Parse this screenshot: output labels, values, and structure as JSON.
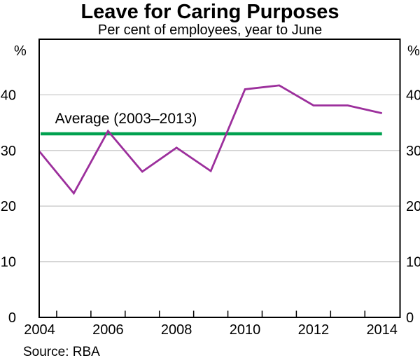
{
  "chart_data": {
    "type": "line",
    "title": "Leave for Caring Purposes",
    "subtitle": "Per cent of employees, year to June",
    "unit_label": "%",
    "x": [
      2004,
      2005,
      2006,
      2007,
      2008,
      2009,
      2010,
      2011,
      2012,
      2013,
      2014
    ],
    "series": [
      {
        "name": "Leave for caring purposes",
        "color": "#9C2F9C",
        "values": [
          29.8,
          22.3,
          33.5,
          26.2,
          30.5,
          26.3,
          41.0,
          41.7,
          38.1,
          38.1,
          36.7
        ]
      }
    ],
    "reference_line": {
      "label": "Average (2003–2013)",
      "value": 33.0,
      "color": "#00A14F"
    },
    "ylim": [
      0,
      50
    ],
    "yticks": [
      0,
      10,
      20,
      30,
      40
    ],
    "xtick_labels": [
      "2004",
      "2006",
      "2008",
      "2010",
      "2012",
      "2014"
    ],
    "grid": true,
    "legend_position": "none",
    "source": "Source: RBA"
  }
}
